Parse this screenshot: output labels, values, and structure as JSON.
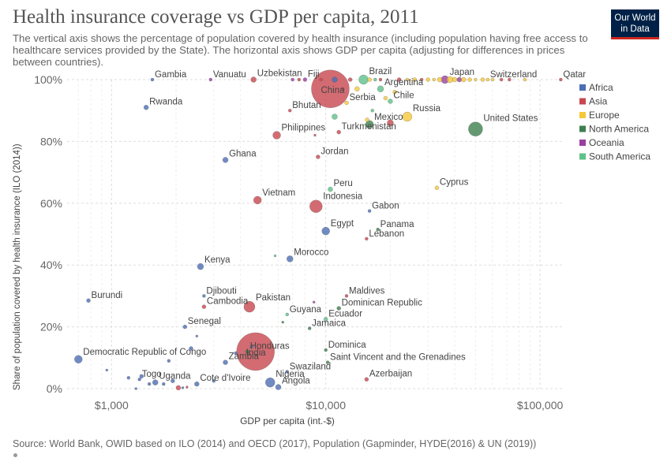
{
  "header": {
    "title": "Health insurance coverage vs GDP per capita, 2011",
    "subtitle": "The vertical axis shows the percentage of population covered by health insurance (including population having free access to healthcare services provided by the State). The horizontal axis shows GDP per capita (adjusting for differences in prices between countries).",
    "logo_line1": "Our World",
    "logo_line2": "in Data"
  },
  "footer": {
    "source": "Source: World Bank, OWID based on ILO (2014) and OECD (2017), Population (Gapminder, HYDE(2016) & UN (2019))"
  },
  "colors": {
    "Africa": "#4c6eb4",
    "Asia": "#c8474f",
    "Europe": "#f5c83a",
    "North America": "#3f7f4f",
    "Oceania": "#9a3fa1",
    "South America": "#5fc08a"
  },
  "chart_data": {
    "type": "scatter",
    "xlabel": "GDP per capita (int.-$)",
    "ylabel": "Share of population covered by health insurance (ILO (2014))",
    "xscale": "log",
    "xlim": [
      620,
      130000
    ],
    "ylim": [
      0,
      100
    ],
    "xticks": [
      {
        "v": 1000,
        "label": "$1,000"
      },
      {
        "v": 10000,
        "label": "$10,000"
      },
      {
        "v": 100000,
        "label": "$100,000"
      }
    ],
    "yticks": [
      {
        "v": 0,
        "label": "0%"
      },
      {
        "v": 20,
        "label": "20%"
      },
      {
        "v": 40,
        "label": "40%"
      },
      {
        "v": 60,
        "label": "60%"
      },
      {
        "v": 80,
        "label": "80%"
      },
      {
        "v": 100,
        "label": "100%"
      }
    ],
    "grid": true,
    "legend_position": "right",
    "legend": [
      "Africa",
      "Asia",
      "Europe",
      "North America",
      "Oceania",
      "South America"
    ],
    "points": [
      {
        "name": "China",
        "x": 10500,
        "y": 97,
        "r": 24,
        "c": "Asia",
        "label": "China"
      },
      {
        "name": "India",
        "x": 4700,
        "y": 12,
        "r": 24,
        "c": "Asia",
        "label": "India"
      },
      {
        "name": "United States",
        "x": 50000,
        "y": 84,
        "r": 9,
        "c": "North America",
        "label": "United States"
      },
      {
        "name": "Indonesia",
        "x": 9000,
        "y": 59,
        "r": 8,
        "c": "Asia",
        "label": "Indonesia"
      },
      {
        "name": "Pakistan",
        "x": 4400,
        "y": 26.5,
        "r": 7,
        "c": "Asia",
        "label": "Pakistan"
      },
      {
        "name": "Brazil",
        "x": 15000,
        "y": 100,
        "r": 6,
        "c": "South America",
        "label": "Brazil"
      },
      {
        "name": "Russia",
        "x": 24000,
        "y": 88,
        "r": 6,
        "c": "Europe",
        "label": "Russia"
      },
      {
        "name": "Japan",
        "x": 36000,
        "y": 100,
        "r": 5,
        "c": "Oceania",
        "label": "Japan"
      },
      {
        "name": "Mexico",
        "x": 16000,
        "y": 85.5,
        "r": 5,
        "c": "North America",
        "label": "Mexico"
      },
      {
        "name": "Nigeria",
        "x": 5500,
        "y": 2,
        "r": 6,
        "c": "Africa",
        "label": "Nigeria"
      },
      {
        "name": "Philippines",
        "x": 5900,
        "y": 82,
        "r": 5,
        "c": "Asia",
        "label": "Philippines"
      },
      {
        "name": "Vietnam",
        "x": 4800,
        "y": 61,
        "r": 5,
        "c": "Asia",
        "label": "Vietnam"
      },
      {
        "name": "Egypt",
        "x": 10000,
        "y": 51,
        "r": 5,
        "c": "Africa",
        "label": "Egypt"
      },
      {
        "name": "Democratic Republic of Congo",
        "x": 700,
        "y": 9.5,
        "r": 5,
        "c": "Africa",
        "label": "Democratic Republic of Congo"
      },
      {
        "name": "Kenya",
        "x": 2600,
        "y": 39.5,
        "r": 4,
        "c": "Africa",
        "label": "Kenya"
      },
      {
        "name": "Morocco",
        "x": 6800,
        "y": 42,
        "r": 4,
        "c": "Africa",
        "label": "Morocco"
      },
      {
        "name": "Ghana",
        "x": 3400,
        "y": 74,
        "r": 3.5,
        "c": "Africa",
        "label": "Ghana"
      },
      {
        "name": "Turkmenistan",
        "x": 11500,
        "y": 83,
        "r": 2.5,
        "c": "Asia",
        "label": "Turkmenistan"
      },
      {
        "name": "Rwanda",
        "x": 1450,
        "y": 91,
        "r": 3,
        "c": "Africa",
        "label": "Rwanda"
      },
      {
        "name": "Gambia",
        "x": 1550,
        "y": 100,
        "r": 2,
        "c": "Africa",
        "label": "Gambia"
      },
      {
        "name": "Vanuatu",
        "x": 2900,
        "y": 100,
        "r": 2,
        "c": "Oceania",
        "label": "Vanuatu"
      },
      {
        "name": "Uzbekistan",
        "x": 4600,
        "y": 100,
        "r": 3.5,
        "c": "Asia",
        "label": "Uzbekistan"
      },
      {
        "name": "Fiji",
        "x": 8000,
        "y": 100,
        "r": 2.5,
        "c": "Oceania",
        "label": "Fiji"
      },
      {
        "name": "Argentina",
        "x": 18000,
        "y": 97,
        "r": 4,
        "c": "South America",
        "label": "Argentina"
      },
      {
        "name": "Chile",
        "x": 20000,
        "y": 93,
        "r": 3,
        "c": "South America",
        "label": "Chile"
      },
      {
        "name": "Serbia",
        "x": 12500,
        "y": 92.5,
        "r": 2.5,
        "c": "Europe",
        "label": "Serbia"
      },
      {
        "name": "Bhutan",
        "x": 6800,
        "y": 90,
        "r": 2,
        "c": "Asia",
        "label": "Bhutan"
      },
      {
        "name": "Switzerland",
        "x": 57000,
        "y": 100,
        "r": 2,
        "c": "Europe",
        "label": "Switzerland"
      },
      {
        "name": "Qatar",
        "x": 125000,
        "y": 100,
        "r": 2,
        "c": "Asia",
        "label": "Qatar"
      },
      {
        "name": "Jordan",
        "x": 9200,
        "y": 75,
        "r": 2.5,
        "c": "Asia",
        "label": "Jordan"
      },
      {
        "name": "Peru",
        "x": 10500,
        "y": 64.5,
        "r": 3,
        "c": "South America",
        "label": "Peru"
      },
      {
        "name": "Cyprus",
        "x": 33000,
        "y": 65,
        "r": 2.5,
        "c": "Europe",
        "label": "Cyprus"
      },
      {
        "name": "Gabon",
        "x": 16000,
        "y": 57.5,
        "r": 2,
        "c": "Africa",
        "label": "Gabon"
      },
      {
        "name": "Panama",
        "x": 17500,
        "y": 51.5,
        "r": 2,
        "c": "North America",
        "label": "Panama"
      },
      {
        "name": "Lebanon",
        "x": 15500,
        "y": 48.5,
        "r": 2,
        "c": "Asia",
        "label": "Lebanon"
      },
      {
        "name": "Djibouti",
        "x": 2700,
        "y": 30,
        "r": 2,
        "c": "Africa",
        "label": "Djibouti"
      },
      {
        "name": "Cambodia",
        "x": 2700,
        "y": 26.5,
        "r": 2.5,
        "c": "Asia",
        "label": "Cambodia"
      },
      {
        "name": "Burundi",
        "x": 780,
        "y": 28.5,
        "r": 2.5,
        "c": "Africa",
        "label": "Burundi"
      },
      {
        "name": "Senegal",
        "x": 2200,
        "y": 20,
        "r": 2.5,
        "c": "Africa",
        "label": "Senegal"
      },
      {
        "name": "Maldives",
        "x": 12500,
        "y": 30,
        "r": 2,
        "c": "Asia",
        "label": "Maldives"
      },
      {
        "name": "Dominican Republic",
        "x": 11500,
        "y": 26,
        "r": 2.5,
        "c": "North America",
        "label": "Dominican Republic"
      },
      {
        "name": "Ecuador",
        "x": 10000,
        "y": 22.5,
        "r": 2.5,
        "c": "South America",
        "label": "Ecuador"
      },
      {
        "name": "Guyana",
        "x": 6600,
        "y": 24,
        "r": 2,
        "c": "South America",
        "label": "Guyana"
      },
      {
        "name": "Jamaica",
        "x": 8400,
        "y": 19.5,
        "r": 2,
        "c": "North America",
        "label": "Jamaica"
      },
      {
        "name": "Honduras",
        "x": 4300,
        "y": 12,
        "r": 2.5,
        "c": "North America",
        "label": "Honduras"
      },
      {
        "name": "Zambia",
        "x": 3400,
        "y": 8.5,
        "r": 3,
        "c": "Africa",
        "label": "Zambia"
      },
      {
        "name": "Dominica",
        "x": 10000,
        "y": 12.5,
        "r": 2,
        "c": "North America",
        "label": "Dominica"
      },
      {
        "name": "Saint Vincent and the Grenadines",
        "x": 10200,
        "y": 8.5,
        "r": 2,
        "c": "North America",
        "label": "Saint Vincent and the Grenadines"
      },
      {
        "name": "Swaziland",
        "x": 6600,
        "y": 5.5,
        "r": 2,
        "c": "Africa",
        "label": "Swaziland"
      },
      {
        "name": "Togo",
        "x": 1350,
        "y": 3,
        "r": 2,
        "c": "Africa",
        "label": "Togo"
      },
      {
        "name": "Uganda",
        "x": 1600,
        "y": 2,
        "r": 3.5,
        "c": "Africa",
        "label": "Uganda"
      },
      {
        "name": "Cote d'Ivoire",
        "x": 2500,
        "y": 1.5,
        "r": 3,
        "c": "Africa",
        "label": "Cote d'Ivoire"
      },
      {
        "name": "Angola",
        "x": 6000,
        "y": 0.5,
        "r": 3.5,
        "c": "Africa",
        "label": "Angola"
      },
      {
        "name": "Azerbaijan",
        "x": 15500,
        "y": 3,
        "r": 2.5,
        "c": "Asia",
        "label": "Azerbaijan"
      },
      {
        "x": 2050,
        "y": 0.3,
        "r": 3,
        "c": "Asia"
      },
      {
        "x": 1300,
        "y": 0,
        "r": 1.5,
        "c": "Africa"
      },
      {
        "x": 1380,
        "y": 4,
        "r": 2.5,
        "c": "Africa"
      },
      {
        "x": 1500,
        "y": 1.5,
        "r": 2,
        "c": "Africa"
      },
      {
        "x": 1750,
        "y": 1.5,
        "r": 2,
        "c": "Africa"
      },
      {
        "x": 1850,
        "y": 9,
        "r": 2,
        "c": "Africa"
      },
      {
        "x": 1930,
        "y": 2.5,
        "r": 2.5,
        "c": "Africa"
      },
      {
        "x": 2350,
        "y": 13,
        "r": 2.5,
        "c": "Africa"
      },
      {
        "x": 2500,
        "y": 17,
        "r": 1.5,
        "c": "Africa"
      },
      {
        "x": 2150,
        "y": 0.3,
        "r": 1.5,
        "c": "Africa"
      },
      {
        "x": 2250,
        "y": 0.5,
        "r": 1.5,
        "c": "Asia"
      },
      {
        "x": 950,
        "y": 6,
        "r": 1.5,
        "c": "Africa"
      },
      {
        "x": 1200,
        "y": 3.5,
        "r": 2,
        "c": "Africa"
      },
      {
        "x": 3000,
        "y": 2.5,
        "r": 2,
        "c": "Africa"
      },
      {
        "x": 3800,
        "y": 11.5,
        "r": 2,
        "c": "Africa"
      },
      {
        "x": 4500,
        "y": 13.5,
        "r": 2,
        "c": "Africa"
      },
      {
        "x": 5800,
        "y": 43,
        "r": 1.5,
        "c": "South America"
      },
      {
        "x": 6300,
        "y": 21.5,
        "r": 1.5,
        "c": "North America"
      },
      {
        "x": 8800,
        "y": 28,
        "r": 1.5,
        "c": "Oceania"
      },
      {
        "x": 8900,
        "y": 82,
        "r": 1.5,
        "c": "Asia"
      },
      {
        "x": 11000,
        "y": 88,
        "r": 3.5,
        "c": "South America"
      },
      {
        "x": 15600,
        "y": 87,
        "r": 2.5,
        "c": "Europe"
      },
      {
        "x": 16500,
        "y": 90,
        "r": 2,
        "c": "South America"
      },
      {
        "x": 20000,
        "y": 86,
        "r": 4,
        "c": "Asia"
      },
      {
        "x": 18000,
        "y": 100,
        "r": 2,
        "c": "Asia"
      },
      {
        "x": 19000,
        "y": 94,
        "r": 2.5,
        "c": "Europe"
      },
      {
        "x": 21000,
        "y": 96,
        "r": 2.5,
        "c": "Europe"
      },
      {
        "x": 14000,
        "y": 97,
        "r": 3,
        "c": "Europe"
      },
      {
        "x": 13000,
        "y": 100,
        "r": 2.5,
        "c": "Asia"
      },
      {
        "x": 11000,
        "y": 100,
        "r": 3.5,
        "c": "Africa"
      },
      {
        "x": 12000,
        "y": 97,
        "r": 2,
        "c": "Asia"
      },
      {
        "x": 9500,
        "y": 100,
        "r": 2,
        "c": "Asia"
      },
      {
        "x": 7000,
        "y": 100,
        "r": 2,
        "c": "Oceania"
      },
      {
        "x": 7500,
        "y": 100,
        "r": 2,
        "c": "Asia"
      },
      {
        "x": 16000,
        "y": 100,
        "r": 2.5,
        "c": "Europe"
      },
      {
        "x": 17000,
        "y": 100,
        "r": 2,
        "c": "South America"
      },
      {
        "x": 22000,
        "y": 100,
        "r": 2.5,
        "c": "Asia"
      },
      {
        "x": 24000,
        "y": 100,
        "r": 2,
        "c": "Europe"
      },
      {
        "x": 26000,
        "y": 100,
        "r": 2.5,
        "c": "Europe"
      },
      {
        "x": 28000,
        "y": 100,
        "r": 2,
        "c": "Asia"
      },
      {
        "x": 30000,
        "y": 100,
        "r": 2.5,
        "c": "Europe"
      },
      {
        "x": 32000,
        "y": 100,
        "r": 2,
        "c": "Europe"
      },
      {
        "x": 34000,
        "y": 100,
        "r": 3,
        "c": "Europe"
      },
      {
        "x": 38000,
        "y": 100,
        "r": 4,
        "c": "Europe"
      },
      {
        "x": 40000,
        "y": 100,
        "r": 3,
        "c": "Europe"
      },
      {
        "x": 42000,
        "y": 100,
        "r": 3,
        "c": "Oceania"
      },
      {
        "x": 44000,
        "y": 100,
        "r": 3,
        "c": "Europe"
      },
      {
        "x": 47000,
        "y": 100,
        "r": 2.5,
        "c": "Europe"
      },
      {
        "x": 50000,
        "y": 100,
        "r": 2,
        "c": "Europe"
      },
      {
        "x": 54000,
        "y": 100,
        "r": 2.5,
        "c": "Europe"
      },
      {
        "x": 60000,
        "y": 100,
        "r": 2,
        "c": "Europe"
      },
      {
        "x": 66000,
        "y": 100,
        "r": 2,
        "c": "Asia"
      },
      {
        "x": 72000,
        "y": 100,
        "r": 2,
        "c": "Asia"
      },
      {
        "x": 85000,
        "y": 100,
        "r": 2,
        "c": "Europe"
      }
    ]
  }
}
